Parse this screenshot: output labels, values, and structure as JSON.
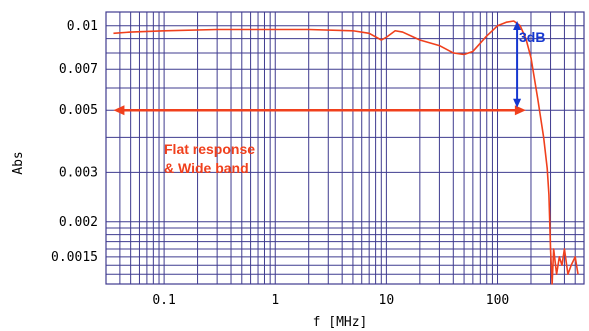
{
  "chart_data": {
    "type": "line",
    "x_scale": "log",
    "y_scale": "log",
    "xlabel": "f  [MHz]",
    "ylabel": "Abs",
    "xlim": [
      0.03,
      600
    ],
    "ylim": [
      0.0012,
      0.0112
    ],
    "x_tick_labels": [
      {
        "value": 0.1,
        "label": "0.1"
      },
      {
        "value": 1,
        "label": "1"
      },
      {
        "value": 10,
        "label": "10"
      },
      {
        "value": 100,
        "label": "100"
      }
    ],
    "y_tick_labels": [
      {
        "value": 0.01,
        "label": "0.01"
      },
      {
        "value": 0.007,
        "label": "0.007"
      },
      {
        "value": 0.005,
        "label": "0.005"
      },
      {
        "value": 0.003,
        "label": "0.003"
      },
      {
        "value": 0.002,
        "label": "0.002"
      },
      {
        "value": 0.0015,
        "label": "0.0015"
      }
    ],
    "grid": true,
    "series": [
      {
        "color": "#f0401d",
        "points": [
          [
            0.035,
            0.0094
          ],
          [
            0.05,
            0.0095
          ],
          [
            0.1,
            0.0096
          ],
          [
            0.3,
            0.0097
          ],
          [
            1,
            0.0097
          ],
          [
            2,
            0.0097
          ],
          [
            5,
            0.0096
          ],
          [
            7,
            0.0094
          ],
          [
            9,
            0.0089
          ],
          [
            10,
            0.0091
          ],
          [
            12,
            0.0096
          ],
          [
            14,
            0.0095
          ],
          [
            20,
            0.0089
          ],
          [
            30,
            0.0085
          ],
          [
            40,
            0.008
          ],
          [
            50,
            0.0079
          ],
          [
            60,
            0.0081
          ],
          [
            80,
            0.0092
          ],
          [
            100,
            0.01
          ],
          [
            120,
            0.0103
          ],
          [
            140,
            0.0104
          ],
          [
            160,
            0.01
          ],
          [
            180,
            0.009
          ],
          [
            200,
            0.0077
          ],
          [
            230,
            0.0055
          ],
          [
            260,
            0.004
          ],
          [
            280,
            0.0031
          ],
          [
            290,
            0.0025
          ],
          [
            300,
            0.0016
          ],
          [
            310,
            0.0012
          ],
          [
            320,
            0.0016
          ],
          [
            340,
            0.0013
          ],
          [
            360,
            0.0015
          ],
          [
            380,
            0.0014
          ],
          [
            400,
            0.0016
          ],
          [
            430,
            0.0013
          ],
          [
            460,
            0.0014
          ],
          [
            500,
            0.0015
          ],
          [
            530,
            0.0013
          ]
        ]
      }
    ],
    "annotations": [
      {
        "text": "3dB",
        "color": "#1537d0"
      },
      {
        "text": "Flat response",
        "color": "#f0401d"
      },
      {
        "text": "& Wide band",
        "color": "#f0401d"
      }
    ],
    "colors": {
      "grid": "#3f3b8f",
      "curve": "#f0401d",
      "flat_arrow": "#f0401d",
      "db_arrow": "#1537d0"
    }
  }
}
